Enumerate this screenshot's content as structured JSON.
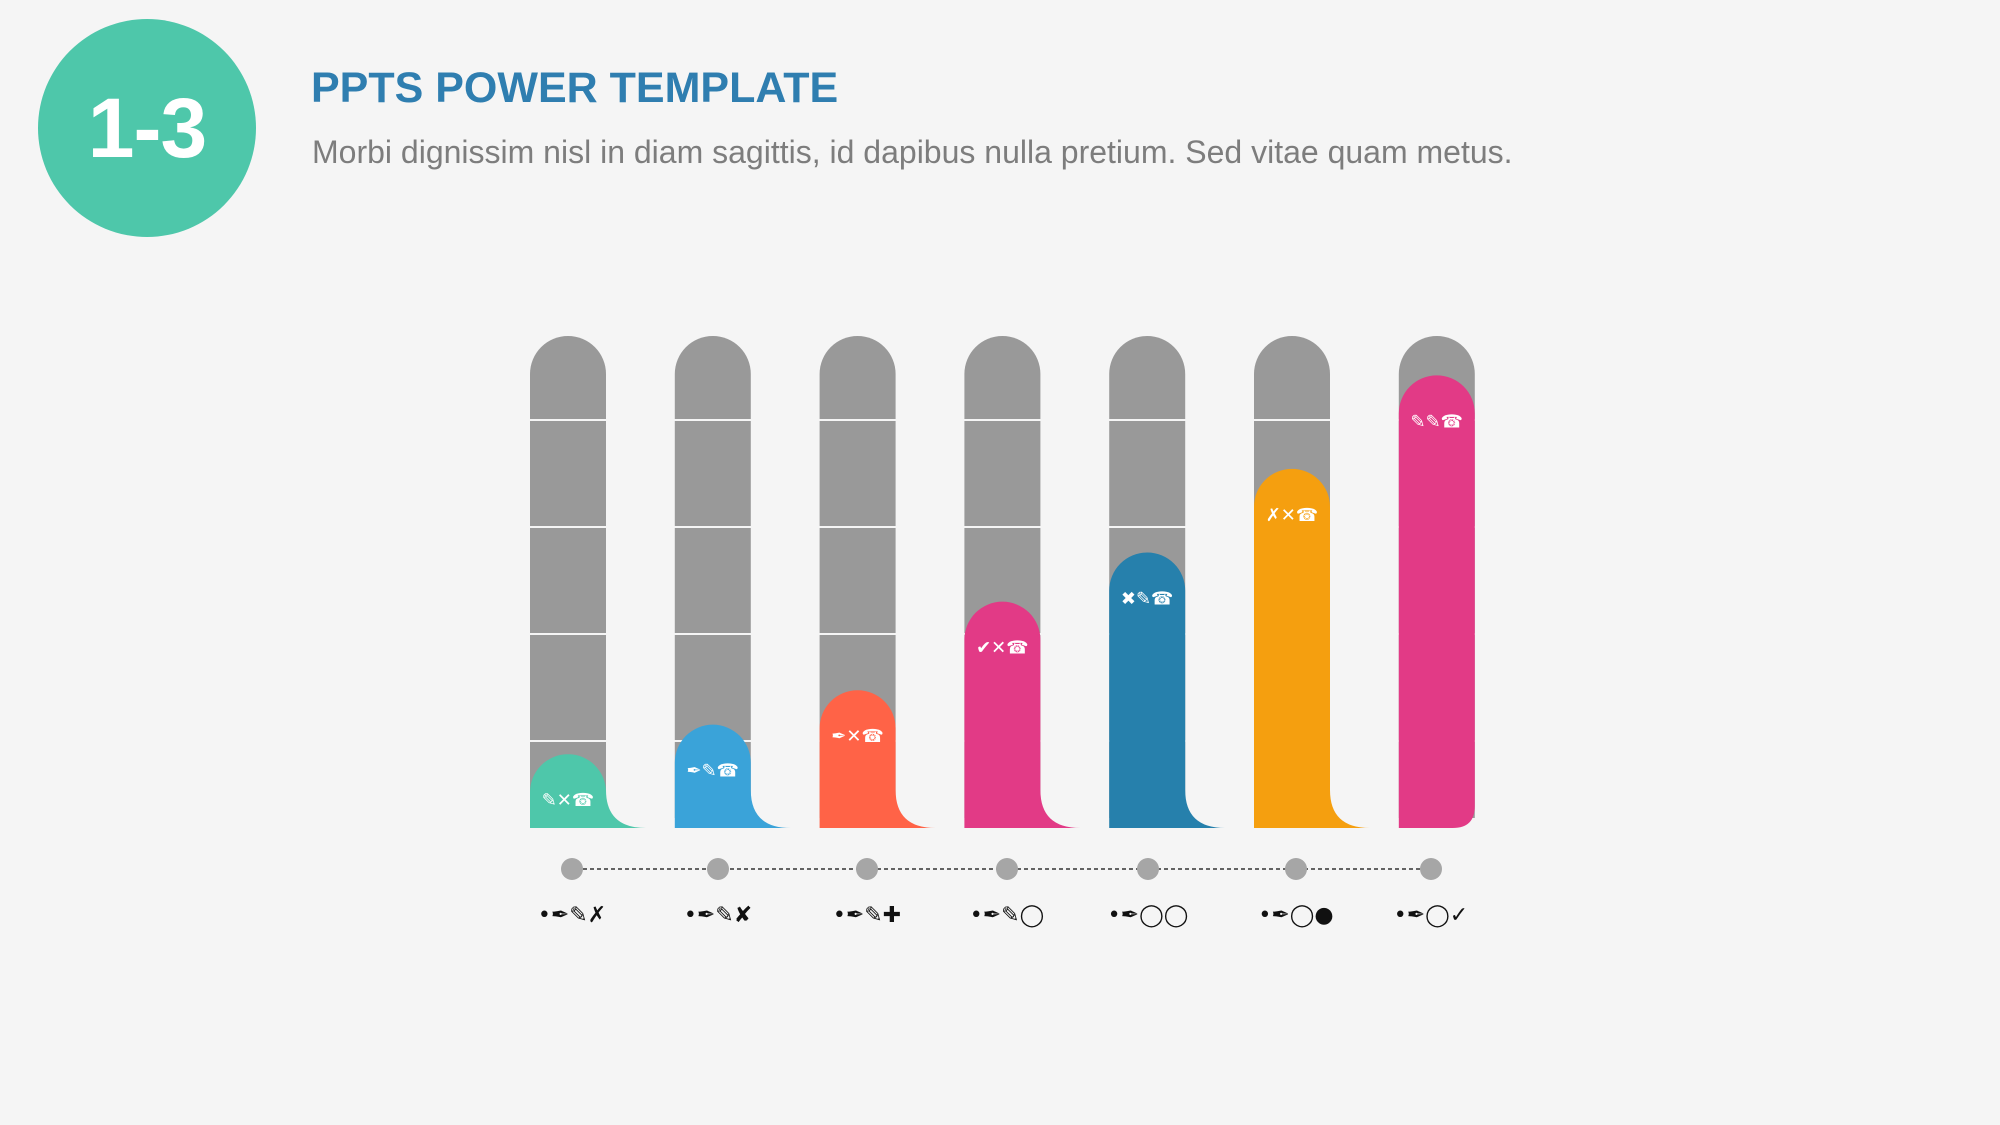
{
  "badge": {
    "label": "1-3",
    "color": "#4ec7aa"
  },
  "header": {
    "title": "PPTS POWER TEMPLATE",
    "subtitle": "Morbi dignissim nisl in diam sagittis, id dapibus nulla pretium. Sed vitae quam metus."
  },
  "chart_data": {
    "type": "bar",
    "title": "",
    "xlabel": "",
    "ylabel": "",
    "ylim": [
      0,
      5
    ],
    "grid": true,
    "track_color": "#999999",
    "categories": [
      "•✒✎✗",
      "•✒✎✘",
      "•✒✎✚",
      "•✒✎◯",
      "•✒◯◯",
      "•✒◯●",
      "•✒◯✓"
    ],
    "values": [
      0.75,
      1.05,
      1.4,
      2.3,
      2.8,
      3.65,
      4.6
    ],
    "bar_labels": [
      "✎✕☎",
      "✒✎☎",
      "✒✕☎",
      "✔✕☎",
      "✖✎☎",
      "✗✕☎",
      "✎✎☎"
    ],
    "colors": [
      "#4ec7aa",
      "#3aa3d9",
      "#ff6347",
      "#e23a86",
      "#2680ac",
      "#f59f0f",
      "#e23a86"
    ]
  }
}
